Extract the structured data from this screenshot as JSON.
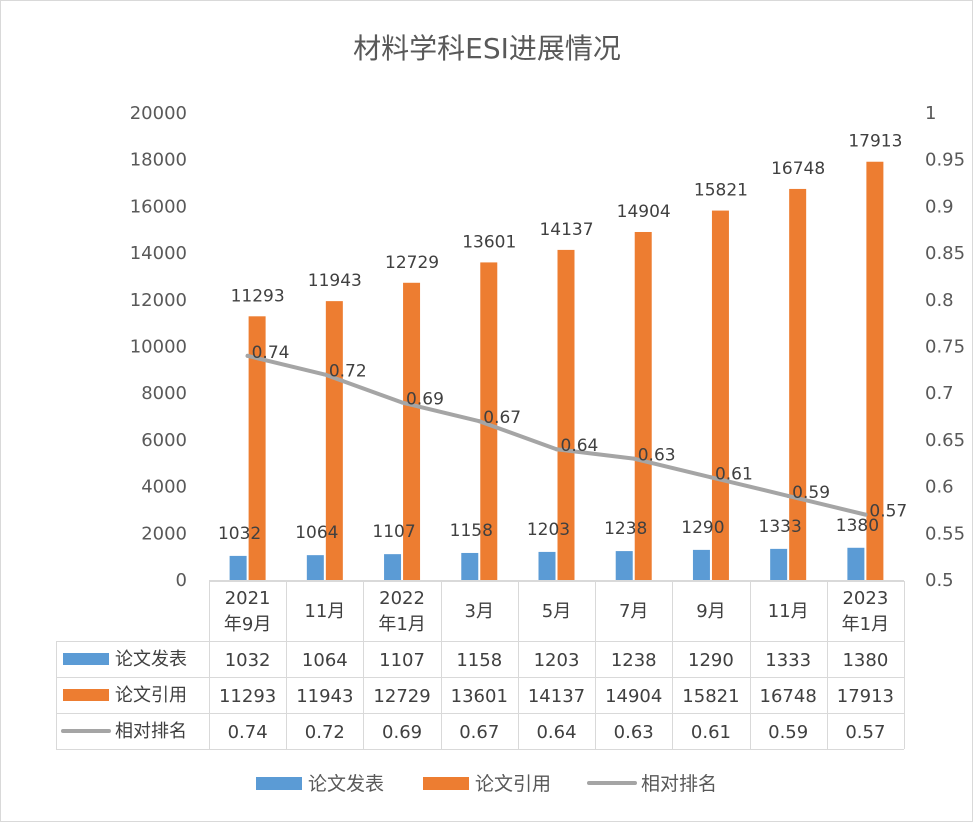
{
  "chart_data": {
    "type": "bar",
    "title": "材料学科ESI进展情况",
    "categories": [
      [
        "2021",
        "年9月"
      ],
      [
        "11月"
      ],
      [
        "2022",
        "年1月"
      ],
      [
        "3月"
      ],
      [
        "5月"
      ],
      [
        "7月"
      ],
      [
        "9月"
      ],
      [
        "11月"
      ],
      [
        "2023",
        "年1月"
      ]
    ],
    "series": [
      {
        "name": "论文发表",
        "type": "bar",
        "axis": "left",
        "color": "#5b9bd5",
        "values": [
          1032,
          1064,
          1107,
          1158,
          1203,
          1238,
          1290,
          1333,
          1380
        ],
        "labels": [
          "1032",
          "1064",
          "1107",
          "1158",
          "1203",
          "1238",
          "1290",
          "1333",
          "1380"
        ]
      },
      {
        "name": "论文引用",
        "type": "bar",
        "axis": "left",
        "color": "#ed7d31",
        "values": [
          11293,
          11943,
          12729,
          13601,
          14137,
          14904,
          15821,
          16748,
          17913
        ],
        "labels": [
          "11293",
          "11943",
          "12729",
          "13601",
          "14137",
          "14904",
          "15821",
          "16748",
          "17913"
        ]
      },
      {
        "name": "相对排名",
        "type": "line",
        "axis": "right",
        "color": "#a5a5a5",
        "values": [
          0.74,
          0.72,
          0.69,
          0.67,
          0.64,
          0.63,
          0.61,
          0.59,
          0.57
        ],
        "labels": [
          "0.74",
          "0.72",
          "0.69",
          "0.67",
          "0.64",
          "0.63",
          "0.61",
          "0.59",
          "0.57"
        ]
      }
    ],
    "y_left": {
      "min": 0,
      "max": 20000,
      "step": 2000,
      "tick_labels": [
        "0",
        "2000",
        "4000",
        "6000",
        "8000",
        "10000",
        "12000",
        "14000",
        "16000",
        "18000",
        "20000"
      ]
    },
    "y_right": {
      "min": 0.5,
      "max": 1,
      "step": 0.05,
      "tick_labels": [
        "0.5",
        "0.55",
        "0.6",
        "0.65",
        "0.7",
        "0.75",
        "0.8",
        "0.85",
        "0.9",
        "0.95",
        "1"
      ]
    },
    "data_table": true,
    "legend_position": "bottom",
    "grid": false
  }
}
